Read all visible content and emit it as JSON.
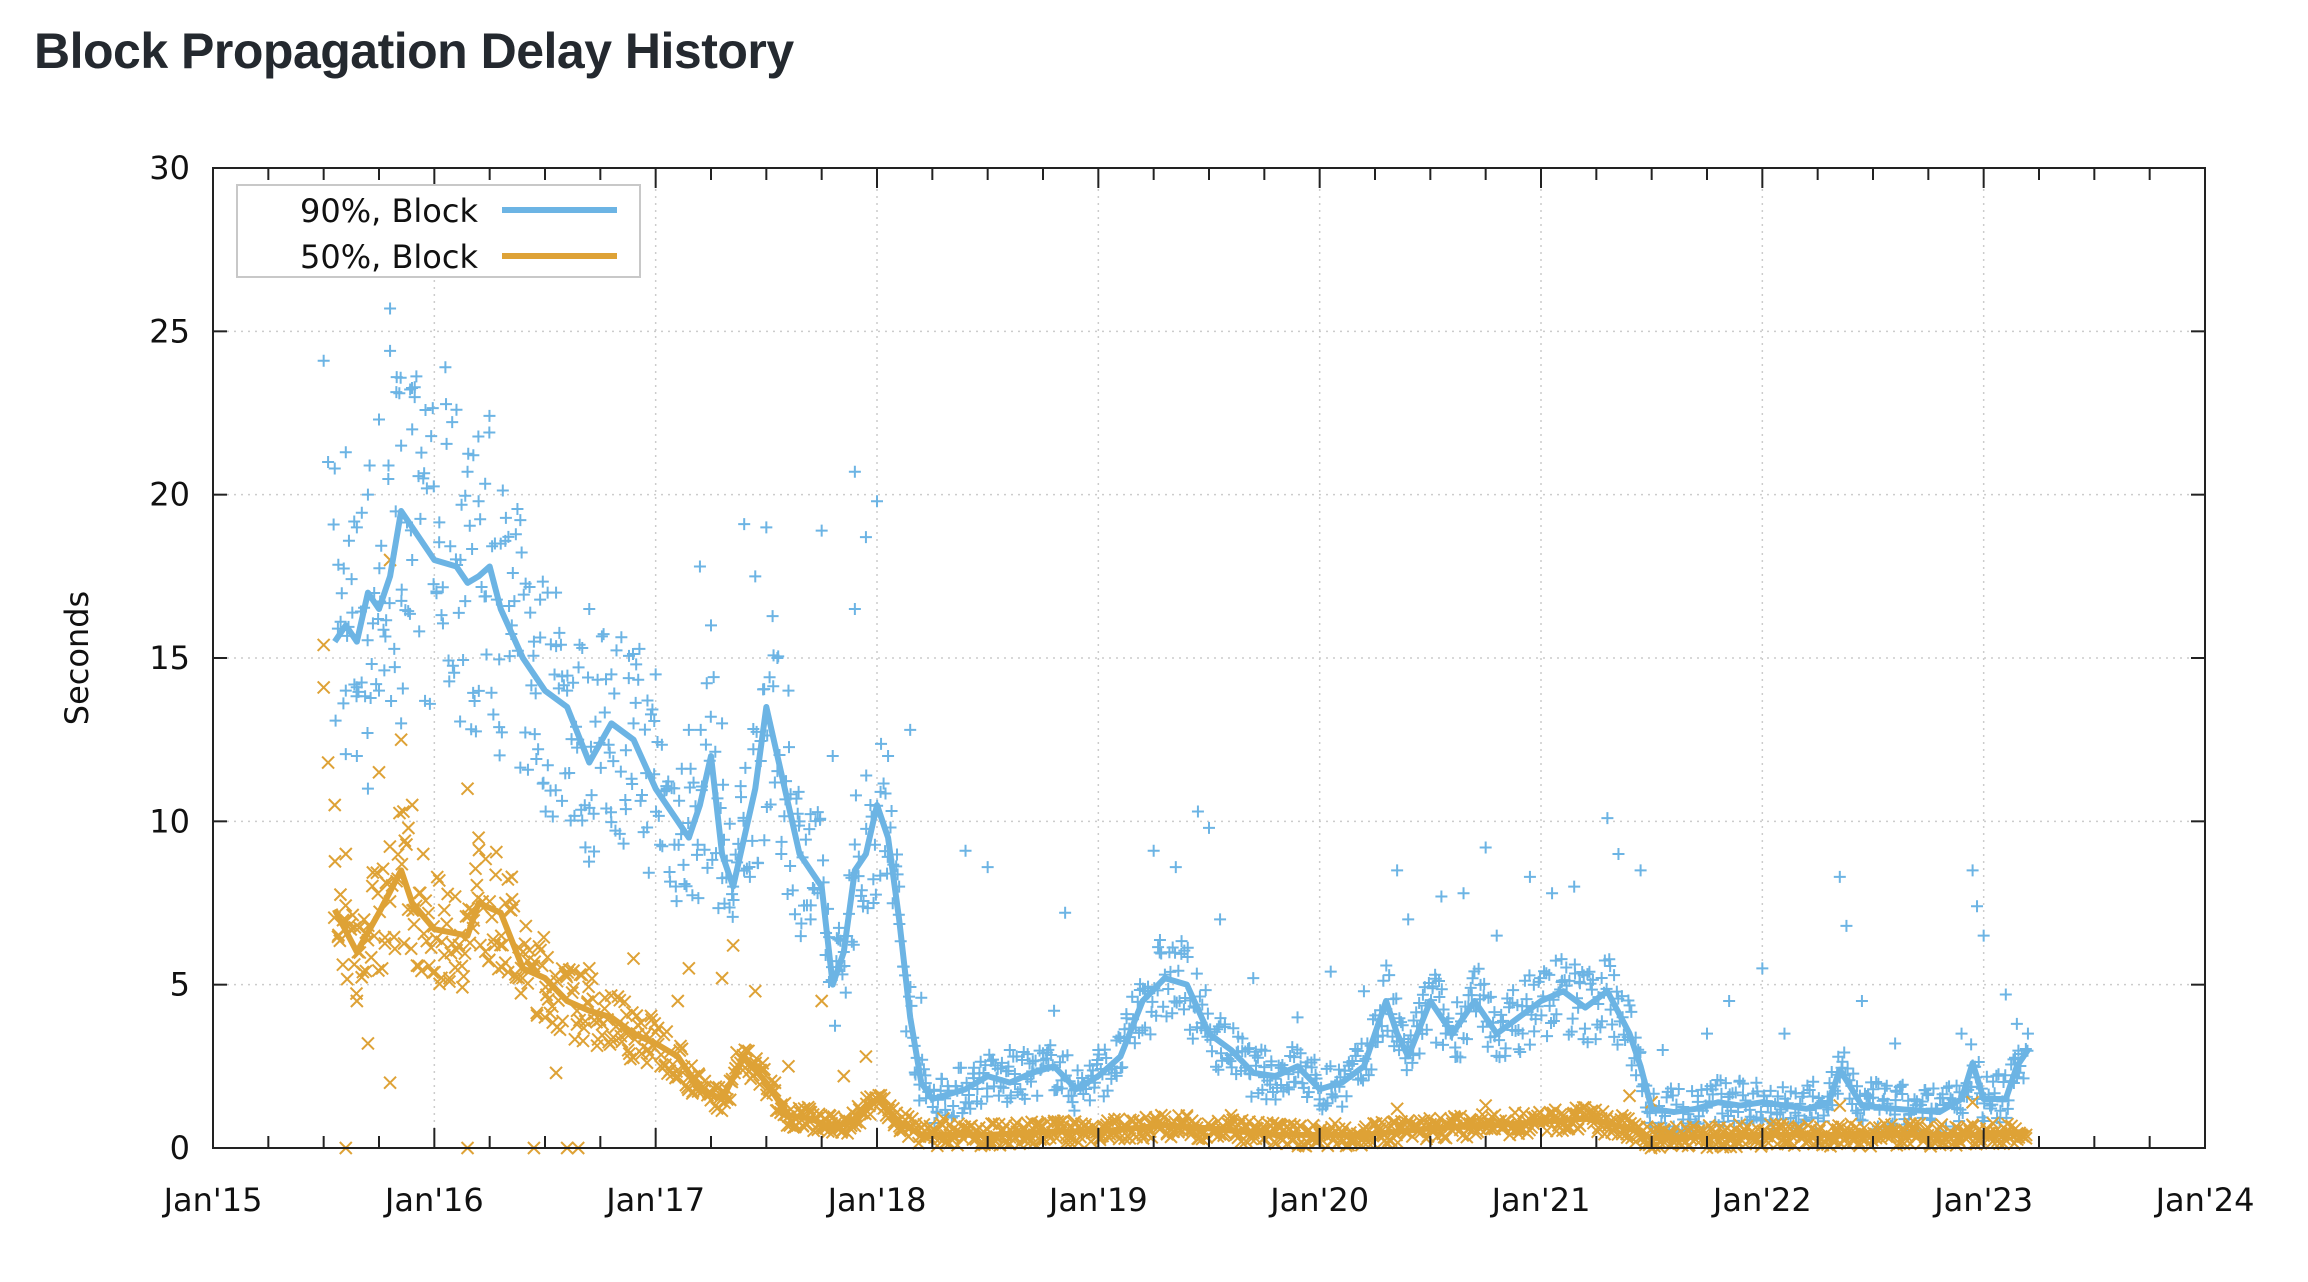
{
  "title": "Block Propagation Delay History",
  "chart_data": {
    "type": "line",
    "title": "Block Propagation Delay History",
    "xlabel": "",
    "ylabel": "Seconds",
    "xlim": [
      2015.0,
      2024.0
    ],
    "ylim": [
      0,
      30
    ],
    "grid": true,
    "legend_position": "top-left",
    "x_ticks": [
      {
        "value": 2015,
        "label": "Jan'15"
      },
      {
        "value": 2016,
        "label": "Jan'16"
      },
      {
        "value": 2017,
        "label": "Jan'17"
      },
      {
        "value": 2018,
        "label": "Jan'18"
      },
      {
        "value": 2019,
        "label": "Jan'19"
      },
      {
        "value": 2020,
        "label": "Jan'20"
      },
      {
        "value": 2021,
        "label": "Jan'21"
      },
      {
        "value": 2022,
        "label": "Jan'22"
      },
      {
        "value": 2023,
        "label": "Jan'23"
      },
      {
        "value": 2024,
        "label": "Jan'24"
      }
    ],
    "y_ticks": [
      {
        "value": 0,
        "label": "0"
      },
      {
        "value": 5,
        "label": "5"
      },
      {
        "value": 10,
        "label": "10"
      },
      {
        "value": 15,
        "label": "15"
      },
      {
        "value": 20,
        "label": "20"
      },
      {
        "value": 25,
        "label": "25"
      },
      {
        "value": 30,
        "label": "30"
      }
    ],
    "series": [
      {
        "name": "90%, Block",
        "color": "#6cb4e4",
        "marker": "plus",
        "band": 2.2,
        "line": [
          [
            2015.55,
            15.5
          ],
          [
            2015.6,
            16
          ],
          [
            2015.65,
            15.5
          ],
          [
            2015.7,
            17
          ],
          [
            2015.75,
            16.5
          ],
          [
            2015.8,
            17.5
          ],
          [
            2015.85,
            19.5
          ],
          [
            2015.9,
            19
          ],
          [
            2016.0,
            18
          ],
          [
            2016.1,
            17.8
          ],
          [
            2016.15,
            17.3
          ],
          [
            2016.2,
            17.5
          ],
          [
            2016.25,
            17.8
          ],
          [
            2016.3,
            16.5
          ],
          [
            2016.4,
            15
          ],
          [
            2016.5,
            14
          ],
          [
            2016.6,
            13.5
          ],
          [
            2016.7,
            11.8
          ],
          [
            2016.8,
            13
          ],
          [
            2016.9,
            12.5
          ],
          [
            2017.0,
            11
          ],
          [
            2017.1,
            10
          ],
          [
            2017.15,
            9.5
          ],
          [
            2017.2,
            10.5
          ],
          [
            2017.25,
            12
          ],
          [
            2017.3,
            9
          ],
          [
            2017.35,
            8
          ],
          [
            2017.45,
            11
          ],
          [
            2017.5,
            13.5
          ],
          [
            2017.55,
            12
          ],
          [
            2017.65,
            9
          ],
          [
            2017.75,
            8
          ],
          [
            2017.8,
            5
          ],
          [
            2017.85,
            6
          ],
          [
            2017.9,
            8.5
          ],
          [
            2017.95,
            9
          ],
          [
            2018.0,
            10.5
          ],
          [
            2018.05,
            9.5
          ],
          [
            2018.1,
            7
          ],
          [
            2018.15,
            4
          ],
          [
            2018.2,
            2
          ],
          [
            2018.25,
            1.5
          ],
          [
            2018.4,
            1.8
          ],
          [
            2018.5,
            2.2
          ],
          [
            2018.6,
            2
          ],
          [
            2018.7,
            2.3
          ],
          [
            2018.8,
            2.5
          ],
          [
            2018.9,
            1.8
          ],
          [
            2019.0,
            2.2
          ],
          [
            2019.1,
            2.8
          ],
          [
            2019.2,
            4.5
          ],
          [
            2019.3,
            5.2
          ],
          [
            2019.4,
            5
          ],
          [
            2019.5,
            3.5
          ],
          [
            2019.6,
            3
          ],
          [
            2019.7,
            2.3
          ],
          [
            2019.8,
            2.2
          ],
          [
            2019.9,
            2.5
          ],
          [
            2020.0,
            1.8
          ],
          [
            2020.1,
            2
          ],
          [
            2020.2,
            2.5
          ],
          [
            2020.3,
            4.5
          ],
          [
            2020.35,
            3.5
          ],
          [
            2020.4,
            2.8
          ],
          [
            2020.5,
            4.5
          ],
          [
            2020.6,
            3.5
          ],
          [
            2020.7,
            4.5
          ],
          [
            2020.8,
            3.5
          ],
          [
            2020.9,
            4
          ],
          [
            2021.0,
            4.5
          ],
          [
            2021.1,
            4.8
          ],
          [
            2021.2,
            4.3
          ],
          [
            2021.3,
            4.8
          ],
          [
            2021.4,
            3.5
          ],
          [
            2021.45,
            2.5
          ],
          [
            2021.5,
            1.2
          ],
          [
            2021.6,
            1.1
          ],
          [
            2021.7,
            1.2
          ],
          [
            2021.8,
            1.4
          ],
          [
            2021.9,
            1.3
          ],
          [
            2022.0,
            1.4
          ],
          [
            2022.2,
            1.2
          ],
          [
            2022.3,
            1.4
          ],
          [
            2022.35,
            2.4
          ],
          [
            2022.45,
            1.3
          ],
          [
            2022.6,
            1.2
          ],
          [
            2022.8,
            1.1
          ],
          [
            2022.9,
            1.5
          ],
          [
            2022.95,
            2.6
          ],
          [
            2023.0,
            1.5
          ],
          [
            2023.1,
            1.5
          ],
          [
            2023.15,
            2.5
          ],
          [
            2023.2,
            3
          ]
        ],
        "scatter": [
          [
            2015.5,
            24.1
          ],
          [
            2015.52,
            21
          ],
          [
            2015.55,
            20.8
          ],
          [
            2015.6,
            21.3
          ],
          [
            2015.65,
            19
          ],
          [
            2015.7,
            20
          ],
          [
            2015.75,
            22.3
          ],
          [
            2015.8,
            25.7
          ],
          [
            2015.8,
            24.4
          ],
          [
            2015.83,
            23.6
          ],
          [
            2015.85,
            21.5
          ],
          [
            2015.9,
            22
          ],
          [
            2015.95,
            20.5
          ],
          [
            2015.6,
            14
          ],
          [
            2015.65,
            12
          ],
          [
            2015.7,
            11
          ],
          [
            2015.75,
            14
          ],
          [
            2015.85,
            13
          ],
          [
            2015.9,
            18
          ],
          [
            2016.05,
            23.9
          ],
          [
            2016.1,
            22.6
          ],
          [
            2016.15,
            20.7
          ],
          [
            2016.2,
            19.8
          ],
          [
            2016.3,
            18.5
          ],
          [
            2016.35,
            16
          ],
          [
            2016.45,
            15.5
          ],
          [
            2016.55,
            17
          ],
          [
            2016.6,
            14
          ],
          [
            2016.65,
            12.5
          ],
          [
            2016.7,
            16.5
          ],
          [
            2016.8,
            14.5
          ],
          [
            2016.9,
            13
          ],
          [
            2017.0,
            14.5
          ],
          [
            2017.05,
            11
          ],
          [
            2017.15,
            12.8
          ],
          [
            2017.2,
            17.8
          ],
          [
            2017.25,
            16
          ],
          [
            2017.3,
            13
          ],
          [
            2017.35,
            8
          ],
          [
            2017.4,
            19.1
          ],
          [
            2017.45,
            17.5
          ],
          [
            2017.5,
            19
          ],
          [
            2017.55,
            15
          ],
          [
            2017.6,
            14
          ],
          [
            2017.65,
            10
          ],
          [
            2017.7,
            7
          ],
          [
            2017.75,
            18.9
          ],
          [
            2017.8,
            12
          ],
          [
            2017.85,
            6
          ],
          [
            2017.9,
            16.5
          ],
          [
            2017.9,
            20.7
          ],
          [
            2017.95,
            18.7
          ],
          [
            2018.0,
            19.8
          ],
          [
            2018.05,
            12
          ],
          [
            2018.1,
            8
          ],
          [
            2018.15,
            12.8
          ],
          [
            2018.2,
            4.6
          ],
          [
            2018.4,
            9.1
          ],
          [
            2018.5,
            8.6
          ],
          [
            2018.6,
            3
          ],
          [
            2018.8,
            4.2
          ],
          [
            2018.85,
            7.2
          ],
          [
            2019.0,
            3
          ],
          [
            2019.25,
            9.1
          ],
          [
            2019.35,
            8.6
          ],
          [
            2019.45,
            10.3
          ],
          [
            2019.5,
            9.8
          ],
          [
            2019.55,
            7
          ],
          [
            2019.7,
            5.2
          ],
          [
            2019.9,
            4
          ],
          [
            2020.05,
            5.4
          ],
          [
            2020.2,
            4.8
          ],
          [
            2020.35,
            8.5
          ],
          [
            2020.4,
            7
          ],
          [
            2020.55,
            7.7
          ],
          [
            2020.65,
            7.8
          ],
          [
            2020.75,
            9.2
          ],
          [
            2020.8,
            6.5
          ],
          [
            2020.95,
            8.3
          ],
          [
            2021.05,
            7.8
          ],
          [
            2021.15,
            8
          ],
          [
            2021.3,
            10.1
          ],
          [
            2021.35,
            9
          ],
          [
            2021.45,
            8.5
          ],
          [
            2021.55,
            3
          ],
          [
            2021.75,
            3.5
          ],
          [
            2021.85,
            4.5
          ],
          [
            2022.0,
            5.5
          ],
          [
            2022.1,
            3.5
          ],
          [
            2022.35,
            8.3
          ],
          [
            2022.38,
            6.8
          ],
          [
            2022.45,
            4.5
          ],
          [
            2022.6,
            3.2
          ],
          [
            2022.9,
            3.5
          ],
          [
            2022.95,
            8.5
          ],
          [
            2022.97,
            7.4
          ],
          [
            2023.0,
            6.5
          ],
          [
            2023.1,
            4.7
          ],
          [
            2023.15,
            3.8
          ],
          [
            2023.2,
            3.5
          ]
        ]
      },
      {
        "name": "50%, Block",
        "color": "#dea236",
        "marker": "cross",
        "band": 1.0,
        "line": [
          [
            2015.55,
            7.3
          ],
          [
            2015.65,
            6
          ],
          [
            2015.75,
            7.2
          ],
          [
            2015.85,
            8.5
          ],
          [
            2015.9,
            7.5
          ],
          [
            2016.0,
            6.7
          ],
          [
            2016.15,
            6.5
          ],
          [
            2016.2,
            7.5
          ],
          [
            2016.3,
            7.2
          ],
          [
            2016.4,
            5.5
          ],
          [
            2016.5,
            5.2
          ],
          [
            2016.6,
            4.5
          ],
          [
            2016.7,
            4.2
          ],
          [
            2016.8,
            4
          ],
          [
            2016.9,
            3.5
          ],
          [
            2017.0,
            3.2
          ],
          [
            2017.1,
            2.8
          ],
          [
            2017.2,
            1.8
          ],
          [
            2017.3,
            1.5
          ],
          [
            2017.4,
            2.8
          ],
          [
            2017.5,
            2
          ],
          [
            2017.6,
            1
          ],
          [
            2017.7,
            0.9
          ],
          [
            2017.8,
            0.6
          ],
          [
            2017.9,
            0.9
          ],
          [
            2018.0,
            1.5
          ],
          [
            2018.1,
            0.8
          ],
          [
            2018.2,
            0.4
          ],
          [
            2018.5,
            0.4
          ],
          [
            2018.8,
            0.5
          ],
          [
            2019.0,
            0.5
          ],
          [
            2019.3,
            0.7
          ],
          [
            2019.5,
            0.6
          ],
          [
            2019.8,
            0.4
          ],
          [
            2020.2,
            0.4
          ],
          [
            2020.5,
            0.6
          ],
          [
            2020.8,
            0.7
          ],
          [
            2021.0,
            0.8
          ],
          [
            2021.2,
            0.9
          ],
          [
            2021.4,
            0.6
          ],
          [
            2021.5,
            0.3
          ],
          [
            2022.0,
            0.4
          ],
          [
            2022.5,
            0.4
          ],
          [
            2023.0,
            0.4
          ],
          [
            2023.2,
            0.5
          ]
        ],
        "scatter": [
          [
            2015.5,
            15.4
          ],
          [
            2015.5,
            14.1
          ],
          [
            2015.52,
            11.8
          ],
          [
            2015.55,
            10.5
          ],
          [
            2015.6,
            9
          ],
          [
            2015.65,
            4.5
          ],
          [
            2015.7,
            3.2
          ],
          [
            2015.75,
            11.5
          ],
          [
            2015.8,
            18
          ],
          [
            2015.85,
            12.5
          ],
          [
            2015.9,
            10.5
          ],
          [
            2015.95,
            9
          ],
          [
            2015.8,
            2
          ],
          [
            2015.6,
            0
          ],
          [
            2016.15,
            0
          ],
          [
            2016.45,
            0
          ],
          [
            2016.6,
            0
          ],
          [
            2016.65,
            0
          ],
          [
            2016.15,
            11
          ],
          [
            2016.2,
            9.5
          ],
          [
            2016.35,
            8.3
          ],
          [
            2016.4,
            6
          ],
          [
            2016.5,
            4
          ],
          [
            2016.55,
            2.3
          ],
          [
            2016.7,
            5.5
          ],
          [
            2016.9,
            5.8
          ],
          [
            2017.1,
            4.5
          ],
          [
            2017.15,
            5.5
          ],
          [
            2017.3,
            5.2
          ],
          [
            2017.35,
            6.2
          ],
          [
            2017.45,
            4.8
          ],
          [
            2017.6,
            2.5
          ],
          [
            2017.75,
            4.5
          ],
          [
            2017.85,
            2.2
          ],
          [
            2017.95,
            2.8
          ],
          [
            2018.3,
            0.9
          ],
          [
            2018.5,
            0.2
          ],
          [
            2019.6,
            1
          ],
          [
            2020.35,
            1.2
          ],
          [
            2020.75,
            1.3
          ],
          [
            2021.4,
            1.6
          ],
          [
            2021.5,
            1.4
          ],
          [
            2022.35,
            1.3
          ],
          [
            2022.95,
            1.4
          ]
        ]
      }
    ]
  }
}
